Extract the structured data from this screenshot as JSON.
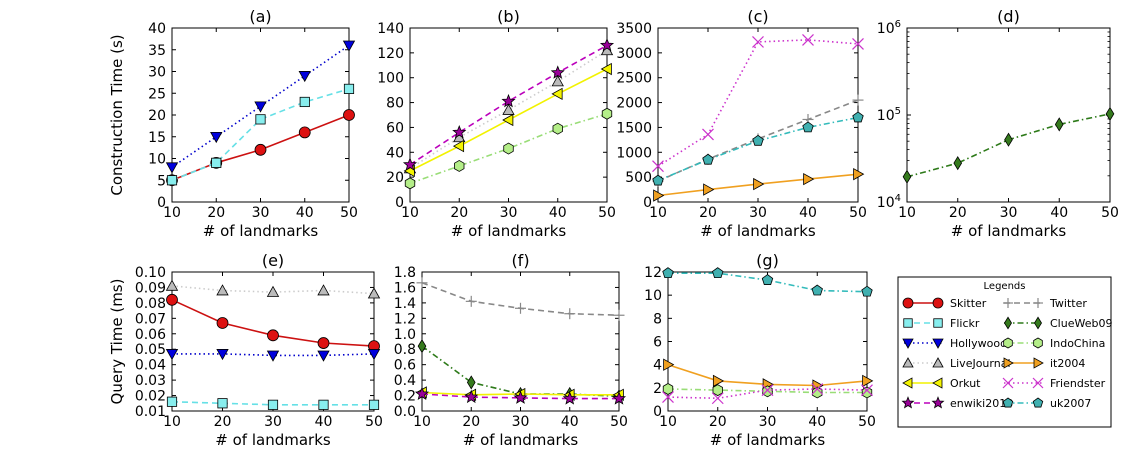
{
  "chart_data": [
    {
      "panel": "(a)",
      "type": "line",
      "title": "(a)",
      "xlabel": "# of landmarks",
      "ylabel": "Construction Time (s)",
      "xlim": [
        10,
        50
      ],
      "ylim": [
        0,
        40
      ],
      "yscale": "linear",
      "xticks": [
        "10",
        "20",
        "30",
        "40",
        "50"
      ],
      "yticks": [
        "0",
        "5",
        "10",
        "15",
        "20",
        "25",
        "30",
        "35",
        "40"
      ],
      "x": [
        10,
        20,
        30,
        40,
        50
      ],
      "series": [
        {
          "name": "Skitter",
          "values": [
            5,
            9,
            12,
            16,
            20
          ]
        },
        {
          "name": "Flickr",
          "values": [
            5,
            9,
            19,
            23,
            26
          ]
        },
        {
          "name": "Hollywood",
          "values": [
            8,
            15,
            22,
            29,
            36
          ]
        }
      ]
    },
    {
      "panel": "(b)",
      "type": "line",
      "title": "(b)",
      "xlabel": "# of landmarks",
      "ylabel": "",
      "xlim": [
        10,
        50
      ],
      "ylim": [
        0,
        140
      ],
      "yscale": "linear",
      "xticks": [
        "10",
        "20",
        "30",
        "40",
        "50"
      ],
      "yticks": [
        "0",
        "20",
        "40",
        "60",
        "80",
        "100",
        "120",
        "140"
      ],
      "x": [
        10,
        20,
        30,
        40,
        50
      ],
      "series": [
        {
          "name": "LiveJournal",
          "values": [
            27,
            52,
            74,
            97,
            122
          ]
        },
        {
          "name": "Orkut",
          "values": [
            25,
            45,
            66,
            87,
            107
          ]
        },
        {
          "name": "enwiki2013",
          "values": [
            30,
            56,
            81,
            104,
            126
          ]
        },
        {
          "name": "IndoChina",
          "values": [
            15,
            29,
            43,
            59,
            71
          ]
        }
      ]
    },
    {
      "panel": "(c)",
      "type": "line",
      "title": "(c)",
      "xlabel": "# of landmarks",
      "ylabel": "",
      "xlim": [
        10,
        50
      ],
      "ylim": [
        0,
        3500
      ],
      "yscale": "linear",
      "xticks": [
        "10",
        "20",
        "30",
        "40",
        "50"
      ],
      "yticks": [
        "0",
        "500",
        "1000",
        "1500",
        "2000",
        "2500",
        "3000",
        "3500"
      ],
      "x": [
        10,
        20,
        30,
        40,
        50
      ],
      "series": [
        {
          "name": "Twitter",
          "values": [
            420,
            860,
            1270,
            1660,
            2050
          ]
        },
        {
          "name": "it2004",
          "values": [
            130,
            250,
            360,
            460,
            560
          ]
        },
        {
          "name": "Friendster",
          "values": [
            720,
            1360,
            3220,
            3260,
            3180
          ]
        },
        {
          "name": "uk2007",
          "values": [
            430,
            850,
            1230,
            1500,
            1700
          ]
        }
      ]
    },
    {
      "panel": "(d)",
      "type": "line",
      "title": "(d)",
      "xlabel": "# of landmarks",
      "ylabel": "",
      "xlim": [
        10,
        50
      ],
      "ylim": [
        10000,
        1000000
      ],
      "yscale": "log",
      "xticks": [
        "10",
        "20",
        "30",
        "40",
        "50"
      ],
      "yticks_log": [
        {
          "base": "10",
          "exp": "4"
        },
        {
          "base": "10",
          "exp": "5"
        },
        {
          "base": "10",
          "exp": "6"
        }
      ],
      "x": [
        10,
        20,
        30,
        40,
        50
      ],
      "series": [
        {
          "name": "ClueWeb09",
          "values": [
            19500,
            28000,
            52000,
            78000,
            103000
          ]
        }
      ]
    },
    {
      "panel": "(e)",
      "type": "line",
      "title": "(e)",
      "xlabel": "# of landmarks",
      "ylabel": "Query Time (ms)",
      "xlim": [
        10,
        50
      ],
      "ylim": [
        0.01,
        0.1
      ],
      "yscale": "linear",
      "xticks": [
        "10",
        "20",
        "30",
        "40",
        "50"
      ],
      "yticks": [
        "0.01",
        "0.02",
        "0.03",
        "0.04",
        "0.05",
        "0.06",
        "0.07",
        "0.08",
        "0.09",
        "0.10"
      ],
      "x": [
        10,
        20,
        30,
        40,
        50
      ],
      "series": [
        {
          "name": "LiveJournal",
          "values": [
            0.091,
            0.088,
            0.087,
            0.088,
            0.086
          ]
        },
        {
          "name": "Skitter",
          "values": [
            0.082,
            0.067,
            0.059,
            0.054,
            0.052
          ]
        },
        {
          "name": "Hollywood",
          "values": [
            0.047,
            0.047,
            0.046,
            0.046,
            0.047
          ]
        },
        {
          "name": "Flickr",
          "values": [
            0.016,
            0.015,
            0.014,
            0.014,
            0.014
          ]
        }
      ]
    },
    {
      "panel": "(f)",
      "type": "line",
      "title": "(f)",
      "xlabel": "# of landmarks",
      "ylabel": "",
      "xlim": [
        10,
        50
      ],
      "ylim": [
        0,
        1.8
      ],
      "yscale": "linear",
      "xticks": [
        "10",
        "20",
        "30",
        "40",
        "50"
      ],
      "yticks": [
        "0.0",
        "0.2",
        "0.4",
        "0.6",
        "0.8",
        "1.0",
        "1.2",
        "1.4",
        "1.6",
        "1.8"
      ],
      "x": [
        10,
        20,
        30,
        40,
        50
      ],
      "series": [
        {
          "name": "Twitter",
          "values": [
            1.66,
            1.42,
            1.33,
            1.26,
            1.24
          ]
        },
        {
          "name": "ClueWeb09",
          "values": [
            0.84,
            0.37,
            0.22,
            0.22,
            0.19
          ]
        },
        {
          "name": "Orkut",
          "values": [
            0.24,
            0.21,
            0.22,
            0.21,
            0.21
          ]
        },
        {
          "name": "enwiki2013",
          "values": [
            0.22,
            0.18,
            0.17,
            0.16,
            0.16
          ]
        }
      ]
    },
    {
      "panel": "(g)",
      "type": "line",
      "title": "(g)",
      "xlabel": "# of landmarks",
      "ylabel": "",
      "xlim": [
        10,
        50
      ],
      "ylim": [
        0,
        12
      ],
      "yscale": "linear",
      "xticks": [
        "10",
        "20",
        "30",
        "40",
        "50"
      ],
      "yticks": [
        "0",
        "2",
        "4",
        "6",
        "8",
        "10",
        "12"
      ],
      "x": [
        10,
        20,
        30,
        40,
        50
      ],
      "series": [
        {
          "name": "uk2007",
          "values": [
            11.9,
            11.9,
            11.3,
            10.4,
            10.3
          ]
        },
        {
          "name": "it2004",
          "values": [
            4.0,
            2.6,
            2.3,
            2.2,
            2.6
          ]
        },
        {
          "name": "IndoChina",
          "values": [
            1.9,
            1.8,
            1.7,
            1.6,
            1.6
          ]
        },
        {
          "name": "Friendster",
          "values": [
            1.2,
            1.1,
            1.8,
            1.9,
            1.8
          ]
        }
      ]
    }
  ],
  "legend": {
    "title": "Legends",
    "placement": "bottom-right",
    "columns": [
      [
        "Skitter",
        "Flickr",
        "Hollywood",
        "LiveJournal",
        "Orkut",
        "enwiki2013"
      ],
      [
        "Twitter",
        "ClueWeb09",
        "IndoChina",
        "it2004",
        "Friendster",
        "uk2007"
      ]
    ]
  },
  "styles": {
    "Skitter": {
      "color": "#cc1111",
      "fill": "#dd1111",
      "dash": "solid",
      "marker": "circle"
    },
    "Flickr": {
      "color": "#66e0e6",
      "fill": "#88eeee",
      "dash": "dashed",
      "marker": "square"
    },
    "Hollywood": {
      "color": "#0000cc",
      "fill": "#0000dd",
      "dash": "dotted",
      "marker": "triangle-down"
    },
    "LiveJournal": {
      "color": "#cccccc",
      "fill": "#bbbbbb",
      "dash": "dotted",
      "marker": "triangle-up"
    },
    "Orkut": {
      "color": "#f2f200",
      "fill": "#f4f400",
      "dash": "solid",
      "marker": "triangle-left"
    },
    "enwiki2013": {
      "color": "#bb00bb",
      "fill": "#990099",
      "dash": "dashed",
      "marker": "star"
    },
    "Twitter": {
      "color": "#888888",
      "fill": "#999999",
      "dash": "dashed",
      "marker": "plus"
    },
    "ClueWeb09": {
      "color": "#2d7a19",
      "fill": "#357a1d",
      "dash": "dashdot",
      "marker": "diamond"
    },
    "IndoChina": {
      "color": "#99dd77",
      "fill": "#b4ee88",
      "dash": "dashdot",
      "marker": "hexagon"
    },
    "it2004": {
      "color": "#f0a020",
      "fill": "#f0a020",
      "dash": "solid",
      "marker": "triangle-right"
    },
    "Friendster": {
      "color": "#cc33cc",
      "fill": "#cc33cc",
      "dash": "dotted",
      "marker": "x"
    },
    "uk2007": {
      "color": "#33bbbb",
      "fill": "#40b0b0",
      "dash": "dashdot",
      "marker": "pentagon"
    }
  }
}
